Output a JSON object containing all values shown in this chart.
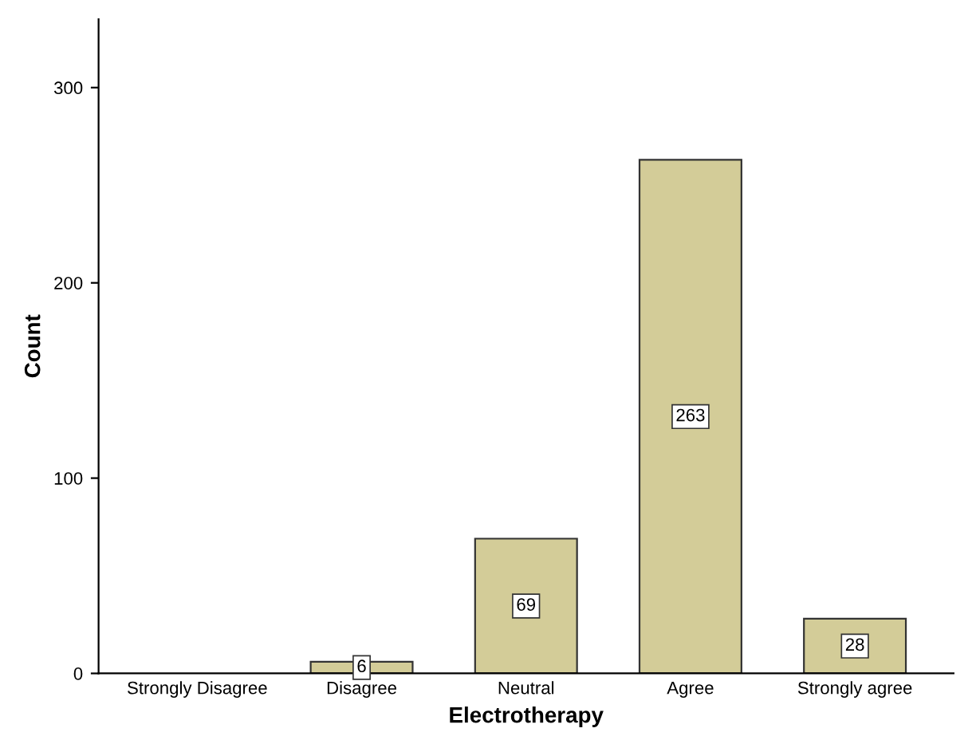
{
  "chart_data": {
    "type": "bar",
    "xlabel": "Electrotherapy",
    "ylabel": "Count",
    "categories": [
      "Strongly Disagree",
      "Disagree",
      "Neutral",
      "Agree",
      "Strongly agree"
    ],
    "values": [
      null,
      6,
      69,
      263,
      28
    ],
    "value_labels": [
      null,
      "6",
      "69",
      "263",
      "28"
    ],
    "color": "#d3cc98",
    "ylim": [
      0,
      335
    ],
    "yticks": [
      0,
      100,
      200,
      300
    ],
    "grid": false
  }
}
